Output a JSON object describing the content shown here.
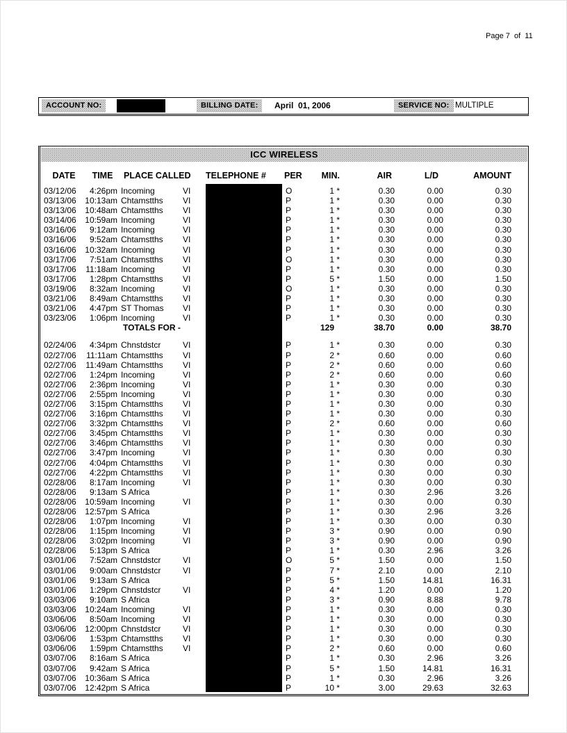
{
  "page": {
    "page_label": "Page 7  of  11"
  },
  "account_bar": {
    "account_label": "ACCOUNT NO:",
    "billing_label": "BILLING DATE:",
    "billing_value": "April  01, 2006",
    "service_label": "SERVICE NO:",
    "service_value": "MULTIPLE"
  },
  "table": {
    "title": "ICC WIRELESS",
    "columns": [
      "DATE",
      "TIME",
      "PLACE CALLED",
      "TELEPHONE #",
      "PER",
      "MIN.",
      "AIR",
      "L/D",
      "AMOUNT"
    ],
    "blocks": [
      {
        "rows": [
          [
            "03/12/06",
            "4:26pm",
            "Incoming",
            "VI",
            "O",
            "1 *",
            "0.30",
            "0.00",
            "0.30"
          ],
          [
            "03/13/06",
            "10:13am",
            "Chtamstths",
            "VI",
            "P",
            "1 *",
            "0.30",
            "0.00",
            "0.30"
          ],
          [
            "03/13/06",
            "10:48am",
            "Chtamstths",
            "VI",
            "P",
            "1 *",
            "0.30",
            "0.00",
            "0.30"
          ],
          [
            "03/14/06",
            "10:59am",
            "Incoming",
            "VI",
            "P",
            "1 *",
            "0.30",
            "0.00",
            "0.30"
          ],
          [
            "03/16/06",
            "9:12am",
            "Incoming",
            "VI",
            "P",
            "1 *",
            "0.30",
            "0.00",
            "0.30"
          ],
          [
            "03/16/06",
            "9:52am",
            "Chtamstths",
            "VI",
            "P",
            "1 *",
            "0.30",
            "0.00",
            "0.30"
          ],
          [
            "03/16/06",
            "10:32am",
            "Incoming",
            "VI",
            "P",
            "1 *",
            "0.30",
            "0.00",
            "0.30"
          ],
          [
            "03/17/06",
            "7:51am",
            "Chtamstths",
            "VI",
            "O",
            "1 *",
            "0.30",
            "0.00",
            "0.30"
          ],
          [
            "03/17/06",
            "11:18am",
            "Incoming",
            "VI",
            "P",
            "1 *",
            "0.30",
            "0.00",
            "0.30"
          ],
          [
            "03/17/06",
            "1:28pm",
            "Chtamstths",
            "VI",
            "P",
            "5 *",
            "1.50",
            "0.00",
            "1.50"
          ],
          [
            "03/19/06",
            "8:32am",
            "Incoming",
            "VI",
            "O",
            "1 *",
            "0.30",
            "0.00",
            "0.30"
          ],
          [
            "03/21/06",
            "8:49am",
            "Chtamstths",
            "VI",
            "P",
            "1 *",
            "0.30",
            "0.00",
            "0.30"
          ],
          [
            "03/21/06",
            "4:47pm",
            "ST Thomas",
            "VI",
            "P",
            "1 *",
            "0.30",
            "0.00",
            "0.30"
          ],
          [
            "03/23/06",
            "1:06pm",
            "Incoming",
            "VI",
            "P",
            "1 *",
            "0.30",
            "0.00",
            "0.30"
          ]
        ],
        "totals": {
          "label": "TOTALS FOR -",
          "min": "129",
          "air": "38.70",
          "ld": "0.00",
          "amount": "38.70"
        }
      },
      {
        "rows": [
          [
            "02/24/06",
            "4:34pm",
            "Chnstdstcr",
            "VI",
            "P",
            "1 *",
            "0.30",
            "0.00",
            "0.30"
          ],
          [
            "02/27/06",
            "11:11am",
            "Chtamstths",
            "VI",
            "P",
            "2 *",
            "0.60",
            "0.00",
            "0.60"
          ],
          [
            "02/27/06",
            "11:49am",
            "Chtamstths",
            "VI",
            "P",
            "2 *",
            "0.60",
            "0.00",
            "0.60"
          ],
          [
            "02/27/06",
            "1:24pm",
            "Incoming",
            "VI",
            "P",
            "2 *",
            "0.60",
            "0.00",
            "0.60"
          ],
          [
            "02/27/06",
            "2:36pm",
            "Incoming",
            "VI",
            "P",
            "1 *",
            "0.30",
            "0.00",
            "0.30"
          ],
          [
            "02/27/06",
            "2:55pm",
            "Incoming",
            "VI",
            "P",
            "1 *",
            "0.30",
            "0.00",
            "0.30"
          ],
          [
            "02/27/06",
            "3:15pm",
            "Chtamstths",
            "VI",
            "P",
            "1 *",
            "0.30",
            "0.00",
            "0.30"
          ],
          [
            "02/27/06",
            "3:16pm",
            "Chtamstths",
            "VI",
            "P",
            "1 *",
            "0.30",
            "0.00",
            "0.30"
          ],
          [
            "02/27/06",
            "3:32pm",
            "Chtamstths",
            "VI",
            "P",
            "2 *",
            "0.60",
            "0.00",
            "0.60"
          ],
          [
            "02/27/06",
            "3:45pm",
            "Chtamstths",
            "VI",
            "P",
            "1 *",
            "0.30",
            "0.00",
            "0.30"
          ],
          [
            "02/27/06",
            "3:46pm",
            "Chtamstths",
            "VI",
            "P",
            "1 *",
            "0.30",
            "0.00",
            "0.30"
          ],
          [
            "02/27/06",
            "3:47pm",
            "Incoming",
            "VI",
            "P",
            "1 *",
            "0.30",
            "0.00",
            "0.30"
          ],
          [
            "02/27/06",
            "4:04pm",
            "Chtamstths",
            "VI",
            "P",
            "1 *",
            "0.30",
            "0.00",
            "0.30"
          ],
          [
            "02/27/06",
            "4:22pm",
            "Chtamstths",
            "VI",
            "P",
            "1 *",
            "0.30",
            "0.00",
            "0.30"
          ],
          [
            "02/28/06",
            "8:17am",
            "Incoming",
            "VI",
            "P",
            "1 *",
            "0.30",
            "0.00",
            "0.30"
          ],
          [
            "02/28/06",
            "9:13am",
            "S Africa",
            "",
            "P",
            "1 *",
            "0.30",
            "2.96",
            "3.26"
          ],
          [
            "02/28/06",
            "10:59am",
            "Incoming",
            "VI",
            "P",
            "1 *",
            "0.30",
            "0.00",
            "0.30"
          ],
          [
            "02/28/06",
            "12:57pm",
            "S Africa",
            "",
            "P",
            "1 *",
            "0.30",
            "2.96",
            "3.26"
          ],
          [
            "02/28/06",
            "1:07pm",
            "Incoming",
            "VI",
            "P",
            "1 *",
            "0.30",
            "0.00",
            "0.30"
          ],
          [
            "02/28/06",
            "1:15pm",
            "Incoming",
            "VI",
            "P",
            "3 *",
            "0.90",
            "0.00",
            "0.90"
          ],
          [
            "02/28/06",
            "3:02pm",
            "Incoming",
            "VI",
            "P",
            "3 *",
            "0.90",
            "0.00",
            "0.90"
          ],
          [
            "02/28/06",
            "5:13pm",
            "S Africa",
            "",
            "P",
            "1 *",
            "0.30",
            "2.96",
            "3.26"
          ],
          [
            "03/01/06",
            "7:52am",
            "Chnstdstcr",
            "VI",
            "O",
            "5 *",
            "1.50",
            "0.00",
            "1.50"
          ],
          [
            "03/01/06",
            "9:00am",
            "Chnstdstcr",
            "VI",
            "P",
            "7 *",
            "2.10",
            "0.00",
            "2.10"
          ],
          [
            "03/01/06",
            "9:13am",
            "S Africa",
            "",
            "P",
            "5 *",
            "1.50",
            "14.81",
            "16.31"
          ],
          [
            "03/01/06",
            "1:29pm",
            "Chnstdstcr",
            "VI",
            "P",
            "4 *",
            "1.20",
            "0.00",
            "1.20"
          ],
          [
            "03/03/06",
            "9:10am",
            "S Africa",
            "",
            "P",
            "3 *",
            "0.90",
            "8.88",
            "9.78"
          ],
          [
            "03/03/06",
            "10:24am",
            "Incoming",
            "VI",
            "P",
            "1 *",
            "0.30",
            "0.00",
            "0.30"
          ],
          [
            "03/06/06",
            "8:50am",
            "Incoming",
            "VI",
            "P",
            "1 *",
            "0.30",
            "0.00",
            "0.30"
          ],
          [
            "03/06/06",
            "12:00pm",
            "Chnstdstcr",
            "VI",
            "P",
            "1 *",
            "0.30",
            "0.00",
            "0.30"
          ],
          [
            "03/06/06",
            "1:53pm",
            "Chtamstths",
            "VI",
            "P",
            "1 *",
            "0.30",
            "0.00",
            "0.30"
          ],
          [
            "03/06/06",
            "1:59pm",
            "Chtamstths",
            "VI",
            "P",
            "2 *",
            "0.60",
            "0.00",
            "0.60"
          ],
          [
            "03/07/06",
            "8:16am",
            "S Africa",
            "",
            "P",
            "1 *",
            "0.30",
            "2.96",
            "3.26"
          ],
          [
            "03/07/06",
            "9:42am",
            "S Africa",
            "",
            "P",
            "5 *",
            "1.50",
            "14.81",
            "16.31"
          ],
          [
            "03/07/06",
            "10:36am",
            "S Africa",
            "",
            "P",
            "1 *",
            "0.30",
            "2.96",
            "3.26"
          ],
          [
            "03/07/06",
            "12:42pm",
            "S Africa",
            "",
            "P",
            "10 *",
            "3.00",
            "29.63",
            "32.63"
          ]
        ]
      }
    ]
  }
}
